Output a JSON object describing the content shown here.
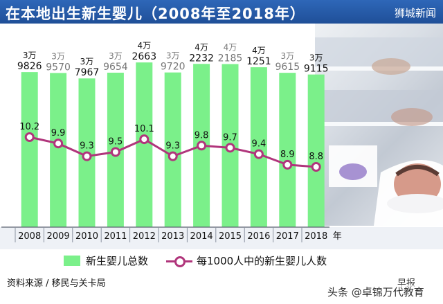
{
  "header": {
    "title": "在本地出生新生婴儿（2008年至2018年）",
    "brand": "狮城新闻"
  },
  "chart_data": {
    "type": "bar",
    "title": "在本地出生新生婴儿（2008年至2018年）",
    "categories": [
      "2008",
      "2009",
      "2010",
      "2011",
      "2012",
      "2013",
      "2014",
      "2015",
      "2016",
      "2017",
      "2018"
    ],
    "x_unit": "年",
    "series": [
      {
        "name": "新生婴儿总数",
        "type": "bar",
        "color": "#7bf08a",
        "values": [
          39826,
          39570,
          37967,
          39654,
          42663,
          39720,
          42232,
          42185,
          41251,
          39615,
          39115
        ],
        "labels_top": [
          "3万",
          "3万",
          "3万",
          "3万",
          "4万",
          "3万",
          "4万",
          "4万",
          "4万",
          "3万",
          "3万"
        ],
        "labels_bottom": [
          "9826",
          "9570",
          "7967",
          "9654",
          "2663",
          "9720",
          "2232",
          "2185",
          "1251",
          "9615",
          "9115"
        ],
        "label_colors": [
          "#111111",
          "#777777",
          "#111111",
          "#777777",
          "#111111",
          "#777777",
          "#111111",
          "#777777",
          "#111111",
          "#777777",
          "#111111"
        ]
      },
      {
        "name": "每1000人中的新生婴儿人数",
        "type": "line",
        "color": "#b0357b",
        "values": [
          10.2,
          9.9,
          9.3,
          9.5,
          10.1,
          9.3,
          9.8,
          9.7,
          9.4,
          8.9,
          8.8
        ],
        "labels": [
          "10.2",
          "9.9",
          "9.3",
          "9.5",
          "10.1",
          "9.3",
          "9.8",
          "9.7",
          "9.4",
          "8.9",
          "8.8"
        ]
      }
    ],
    "legend_position": "bottom",
    "grid": false
  },
  "legend": {
    "bars_label": "新生婴儿总数",
    "line_label": "每1000人中的新生婴儿人数"
  },
  "footer": {
    "source": "资料来源 / 移民与关卡局",
    "paper": "早报",
    "watermark": "头条 @卓锦万代教育"
  }
}
